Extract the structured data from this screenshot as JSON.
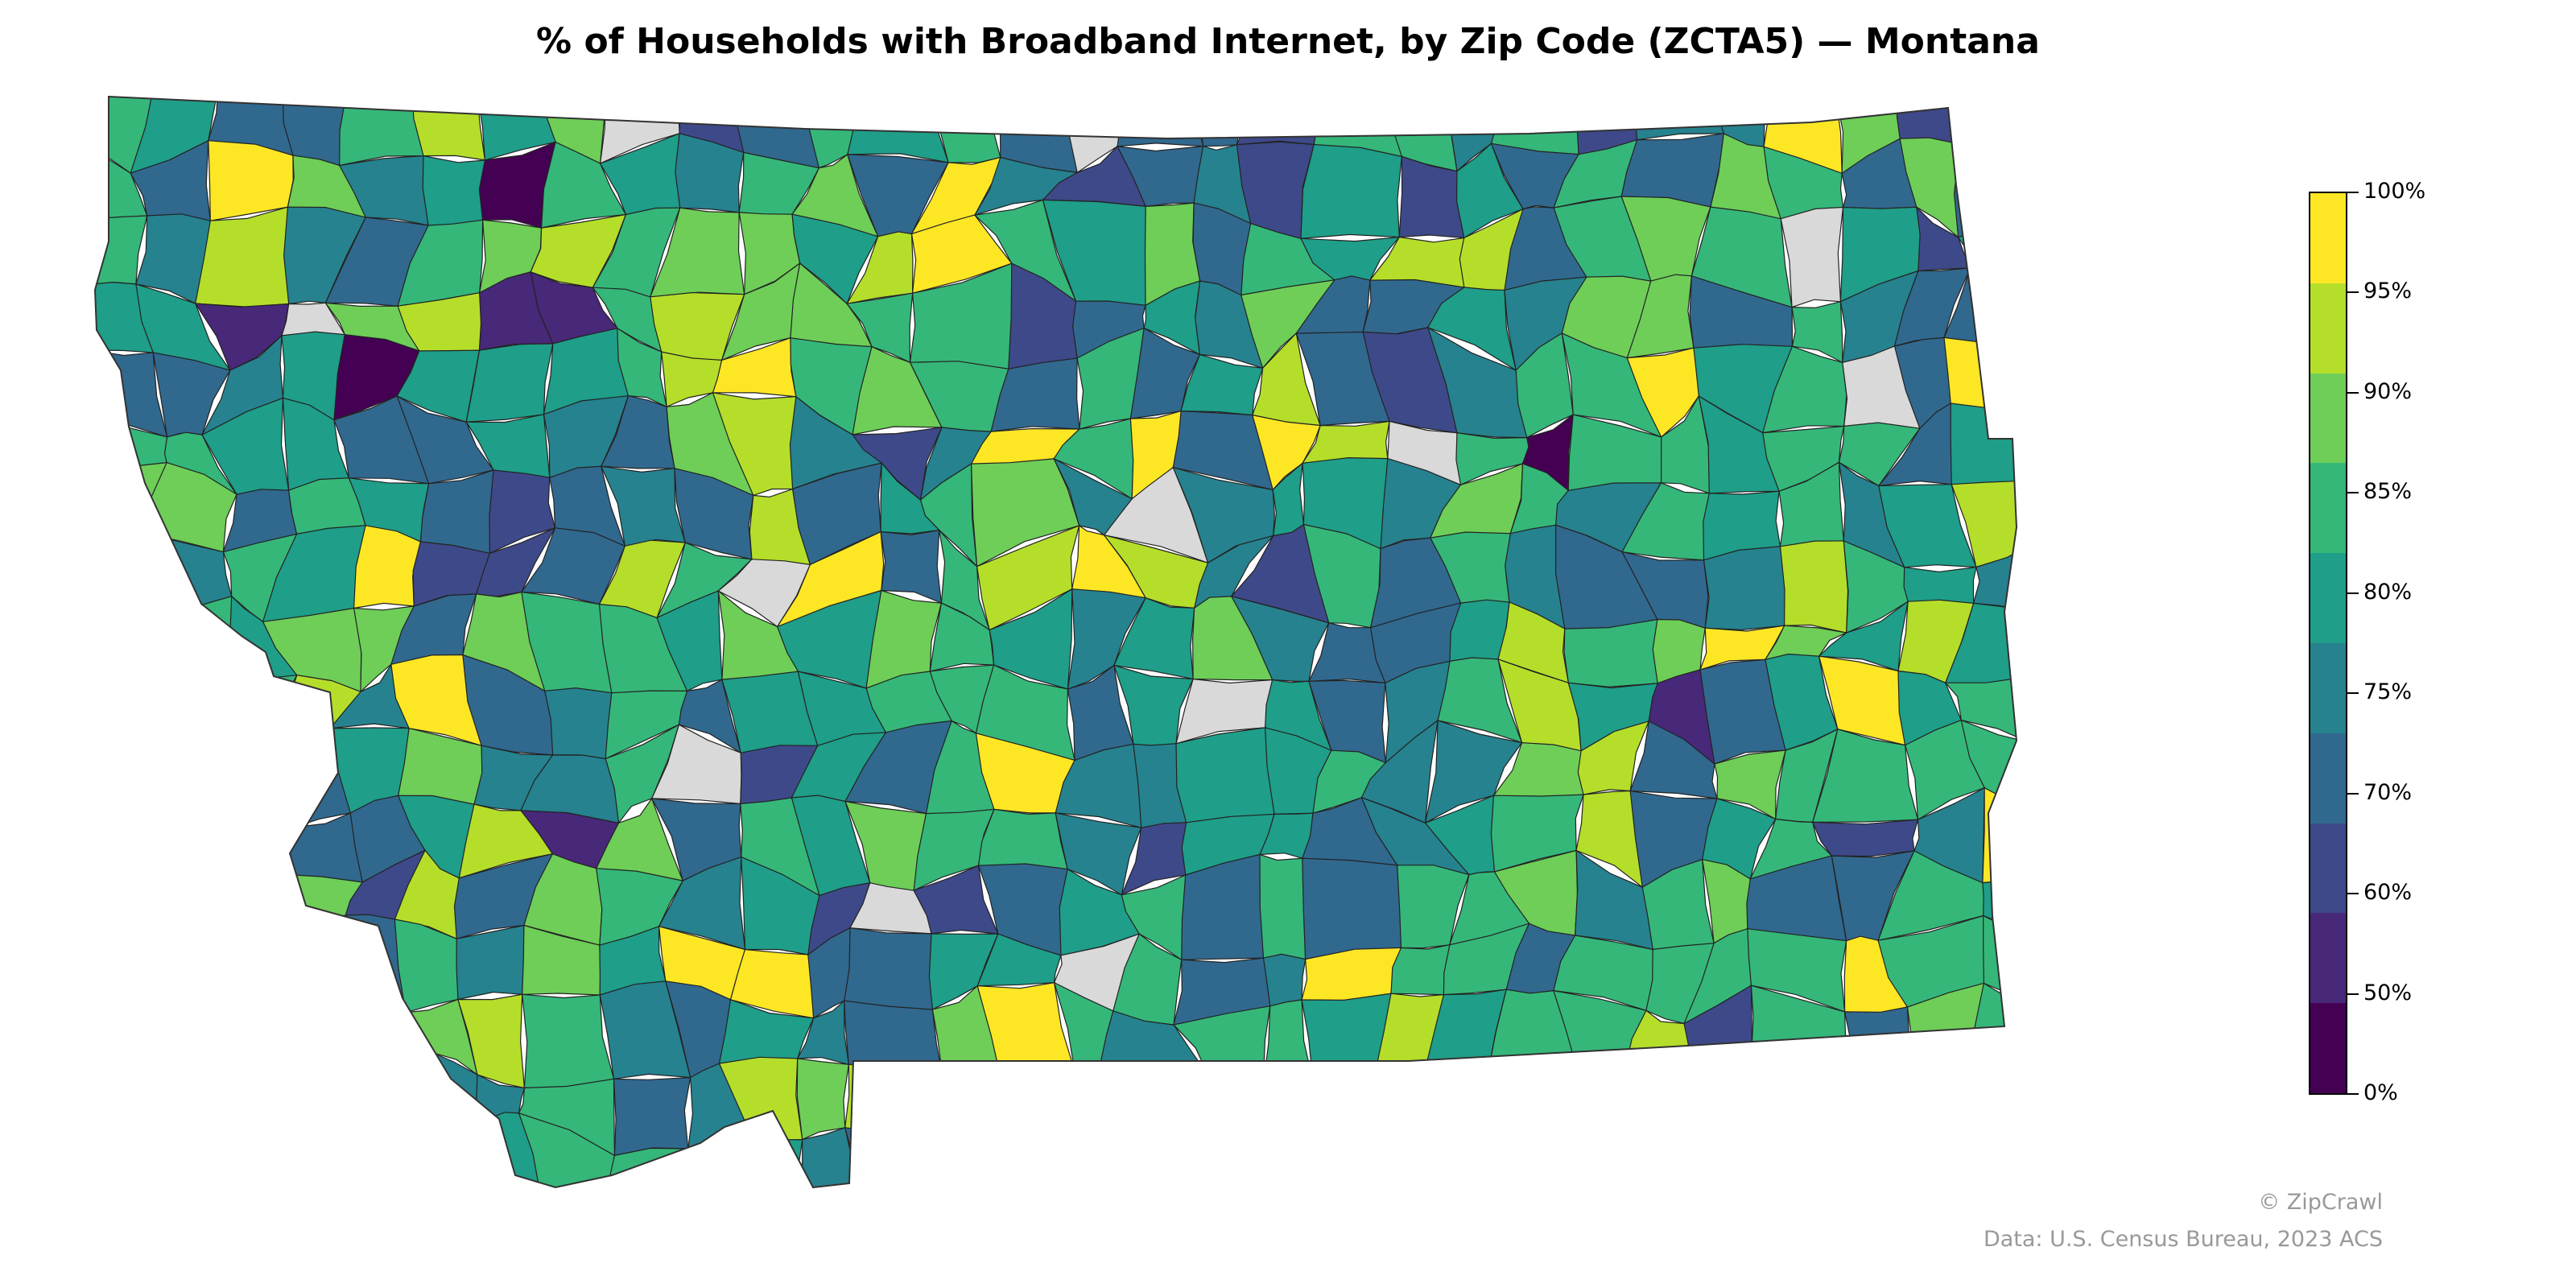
{
  "title": "% of Households with Broadband Internet, by Zip Code (ZCTA5) — Montana",
  "colors": {
    "no_data": "#d9d9d9",
    "border": "#222222",
    "bins": [
      "#440154",
      "#482878",
      "#3e4989",
      "#31688e",
      "#26828e",
      "#1f9e89",
      "#35b779",
      "#6ece58",
      "#b5de2b",
      "#fde725"
    ]
  },
  "legend": {
    "tick_labels": [
      "100%",
      "95%",
      "90%",
      "85%",
      "80%",
      "75%",
      "70%",
      "60%",
      "50%",
      "0%"
    ]
  },
  "credits": {
    "brand": "© ZipCrawl",
    "source": "Data: U.S. Census Bureau, 2023 ACS"
  }
}
